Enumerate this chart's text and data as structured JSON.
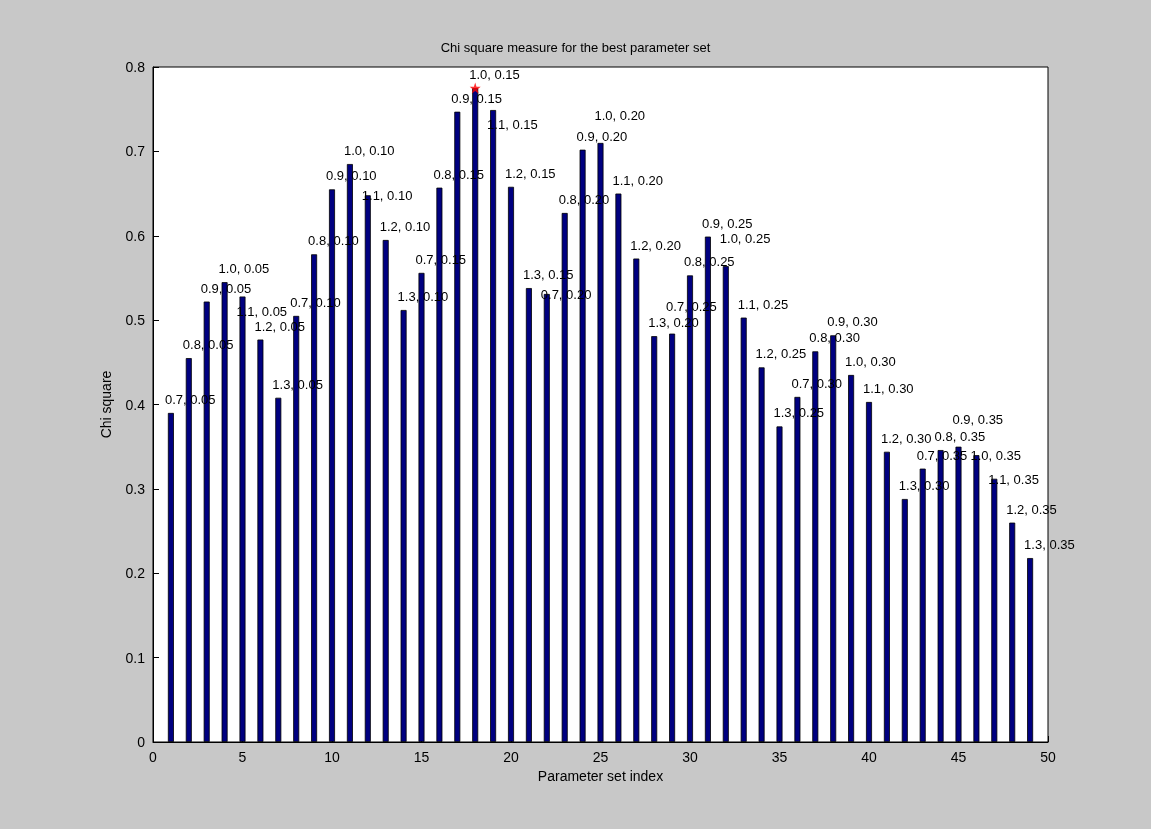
{
  "chart_data": {
    "type": "bar",
    "title": "Chi square measure for the best parameter set",
    "xlabel": "Parameter set index",
    "ylabel": "Chi square",
    "x": [
      1,
      2,
      3,
      4,
      5,
      6,
      7,
      8,
      9,
      10,
      11,
      12,
      13,
      14,
      15,
      16,
      17,
      18,
      19,
      20,
      21,
      22,
      23,
      24,
      25,
      26,
      27,
      28,
      29,
      30,
      31,
      32,
      33,
      34,
      35,
      36,
      37,
      38,
      39,
      40,
      41,
      42,
      43,
      44,
      45,
      46,
      47,
      48,
      49
    ],
    "series": [
      {
        "color": "#000080",
        "values": [
          0.39,
          0.455,
          0.522,
          0.545,
          0.528,
          0.477,
          0.408,
          0.505,
          0.578,
          0.655,
          0.685,
          0.648,
          0.595,
          0.512,
          0.556,
          0.657,
          0.747,
          0.775,
          0.749,
          0.658,
          0.538,
          0.531,
          0.627,
          0.702,
          0.71,
          0.65,
          0.573,
          0.481,
          0.484,
          0.553,
          0.599,
          0.564,
          0.503,
          0.444,
          0.374,
          0.409,
          0.463,
          0.482,
          0.435,
          0.403,
          0.344,
          0.288,
          0.324,
          0.346,
          0.35,
          0.34,
          0.312,
          0.26,
          0.218
        ]
      },
      {
        "type": "scatter",
        "color": "#ff0000",
        "x": [
          18
        ],
        "values": [
          0.775
        ]
      }
    ],
    "annotations": [
      {
        "text": "0.7, 0.05",
        "x": 1,
        "y": 0.39
      },
      {
        "text": "0.8, 0.05",
        "x": 2,
        "y": 0.455
      },
      {
        "text": "0.9, 0.05",
        "x": 3,
        "y": 0.522
      },
      {
        "text": "1.0, 0.05",
        "x": 4,
        "y": 0.545
      },
      {
        "text": "1.1, 0.05",
        "x": 5,
        "y": 0.528
      },
      {
        "text": "1.2, 0.05",
        "x": 6,
        "y": 0.477
      },
      {
        "text": "1.3, 0.05",
        "x": 7,
        "y": 0.408
      },
      {
        "text": "0.7, 0.10",
        "x": 8,
        "y": 0.505
      },
      {
        "text": "0.8, 0.10",
        "x": 9,
        "y": 0.578
      },
      {
        "text": "0.9, 0.10",
        "x": 10,
        "y": 0.655
      },
      {
        "text": "1.0, 0.10",
        "x": 11,
        "y": 0.685
      },
      {
        "text": "1.1, 0.10",
        "x": 12,
        "y": 0.648
      },
      {
        "text": "1.2, 0.10",
        "x": 13,
        "y": 0.595
      },
      {
        "text": "1.3, 0.10",
        "x": 14,
        "y": 0.512
      },
      {
        "text": "0.7, 0.15",
        "x": 15,
        "y": 0.556
      },
      {
        "text": "0.8, 0.15",
        "x": 16,
        "y": 0.657
      },
      {
        "text": "0.9, 0.15",
        "x": 17,
        "y": 0.747
      },
      {
        "text": "1.0, 0.15",
        "x": 18,
        "y": 0.775
      },
      {
        "text": "1.1, 0.15",
        "x": 19,
        "y": 0.749
      },
      {
        "text": "1.2, 0.15",
        "x": 20,
        "y": 0.658
      },
      {
        "text": "1.3, 0.15",
        "x": 21,
        "y": 0.538
      },
      {
        "text": "0.7, 0.20",
        "x": 22,
        "y": 0.531
      },
      {
        "text": "0.8, 0.20",
        "x": 23,
        "y": 0.627
      },
      {
        "text": "0.9, 0.20",
        "x": 24,
        "y": 0.702
      },
      {
        "text": "1.0, 0.20",
        "x": 25,
        "y": 0.71
      },
      {
        "text": "1.1, 0.20",
        "x": 26,
        "y": 0.65
      },
      {
        "text": "1.2, 0.20",
        "x": 27,
        "y": 0.573
      },
      {
        "text": "1.3, 0.20",
        "x": 28,
        "y": 0.481
      },
      {
        "text": "0.7, 0.25",
        "x": 29,
        "y": 0.484
      },
      {
        "text": "0.8, 0.25",
        "x": 30,
        "y": 0.553
      },
      {
        "text": "0.9, 0.25",
        "x": 31,
        "y": 0.599
      },
      {
        "text": "1.0, 0.25",
        "x": 32,
        "y": 0.564
      },
      {
        "text": "1.1, 0.25",
        "x": 33,
        "y": 0.503
      },
      {
        "text": "1.2, 0.25",
        "x": 34,
        "y": 0.444
      },
      {
        "text": "1.3, 0.25",
        "x": 35,
        "y": 0.374
      },
      {
        "text": "0.7, 0.30",
        "x": 36,
        "y": 0.409
      },
      {
        "text": "0.8, 0.30",
        "x": 37,
        "y": 0.463
      },
      {
        "text": "0.9, 0.30",
        "x": 38,
        "y": 0.482
      },
      {
        "text": "1.0, 0.30",
        "x": 39,
        "y": 0.435
      },
      {
        "text": "1.1, 0.30",
        "x": 40,
        "y": 0.403
      },
      {
        "text": "1.2, 0.30",
        "x": 41,
        "y": 0.344
      },
      {
        "text": "1.3, 0.30",
        "x": 42,
        "y": 0.288
      },
      {
        "text": "0.7, 0.35",
        "x": 43,
        "y": 0.324
      },
      {
        "text": "0.8, 0.35",
        "x": 44,
        "y": 0.346
      },
      {
        "text": "0.9, 0.35",
        "x": 45,
        "y": 0.35
      },
      {
        "text": "1.0, 0.35",
        "x": 46,
        "y": 0.34
      },
      {
        "text": "1.1, 0.35",
        "x": 47,
        "y": 0.312
      },
      {
        "text": "1.2, 0.35",
        "x": 48,
        "y": 0.26
      },
      {
        "text": "1.3, 0.35",
        "x": 49,
        "y": 0.218
      }
    ],
    "marker": "star",
    "xlim": [
      0,
      50
    ],
    "xticks": [
      0,
      5,
      10,
      15,
      20,
      25,
      30,
      35,
      40,
      45,
      50
    ],
    "ylim": [
      0,
      0.8
    ],
    "yticks": [
      0,
      0.1,
      0.2,
      0.3,
      0.4,
      0.5,
      0.6,
      0.7,
      0.8
    ],
    "grid": false
  }
}
